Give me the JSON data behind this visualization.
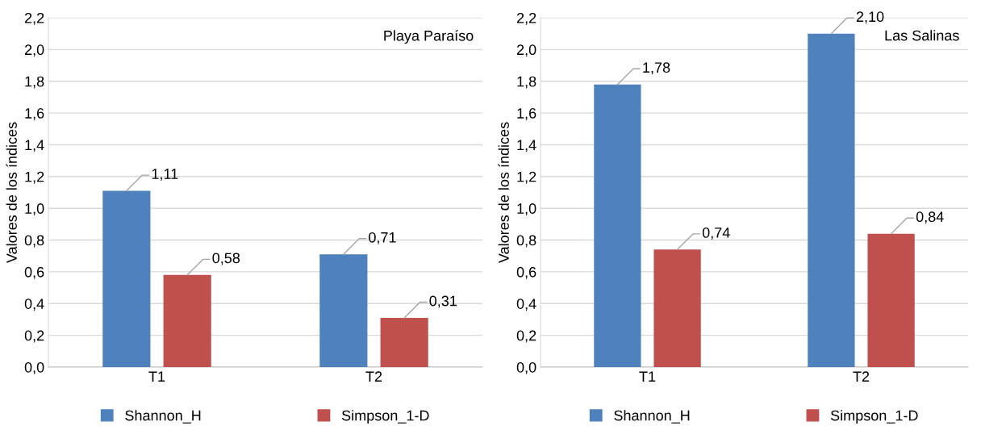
{
  "chart_data": [
    {
      "type": "bar",
      "title": "Playa Paraíso",
      "ylabel": "Valores de los índices",
      "categories": [
        "T1",
        "T2"
      ],
      "series": [
        {
          "name": "Shannon_H",
          "color": "#4f81bd",
          "values": [
            1.11,
            0.71
          ],
          "value_labels": [
            "1,11",
            "0,71"
          ]
        },
        {
          "name": "Simpson_1-D",
          "color": "#c0504d",
          "values": [
            0.58,
            0.31
          ],
          "value_labels": [
            "0,58",
            "0,31"
          ]
        }
      ],
      "ylim": [
        0,
        2.2
      ],
      "yticks": [
        {
          "value": 0,
          "label": "0,0"
        },
        {
          "value": 0.2,
          "label": "0,2"
        },
        {
          "value": 0.4,
          "label": "0,4"
        },
        {
          "value": 0.6,
          "label": "0,6"
        },
        {
          "value": 0.8,
          "label": "0,8"
        },
        {
          "value": 1.0,
          "label": "1,0"
        },
        {
          "value": 1.2,
          "label": "1,2"
        },
        {
          "value": 1.4,
          "label": "1,4"
        },
        {
          "value": 1.6,
          "label": "1,6"
        },
        {
          "value": 1.8,
          "label": "1,8"
        },
        {
          "value": 2.0,
          "label": "2,0"
        },
        {
          "value": 2.2,
          "label": "2,2"
        }
      ],
      "grid": "y",
      "legend": "bottom"
    },
    {
      "type": "bar",
      "title": "Las Salinas",
      "ylabel": "Valores de los índices",
      "categories": [
        "T1",
        "T2"
      ],
      "series": [
        {
          "name": "Shannon_H",
          "color": "#4f81bd",
          "values": [
            1.78,
            2.1
          ],
          "value_labels": [
            "1,78",
            "2,10"
          ]
        },
        {
          "name": "Simpson_1-D",
          "color": "#c0504d",
          "values": [
            0.74,
            0.84
          ],
          "value_labels": [
            "0,74",
            "0,84"
          ]
        }
      ],
      "ylim": [
        0,
        2.2
      ],
      "yticks": [
        {
          "value": 0,
          "label": "0,0"
        },
        {
          "value": 0.2,
          "label": "0,2"
        },
        {
          "value": 0.4,
          "label": "0,4"
        },
        {
          "value": 0.6,
          "label": "0,6"
        },
        {
          "value": 0.8,
          "label": "0,8"
        },
        {
          "value": 1.0,
          "label": "1,0"
        },
        {
          "value": 1.2,
          "label": "1,2"
        },
        {
          "value": 1.4,
          "label": "1,4"
        },
        {
          "value": 1.6,
          "label": "1,6"
        },
        {
          "value": 1.8,
          "label": "1,8"
        },
        {
          "value": 2.0,
          "label": "2,0"
        },
        {
          "value": 2.2,
          "label": "2,2"
        }
      ],
      "grid": "y",
      "legend": "bottom"
    }
  ]
}
